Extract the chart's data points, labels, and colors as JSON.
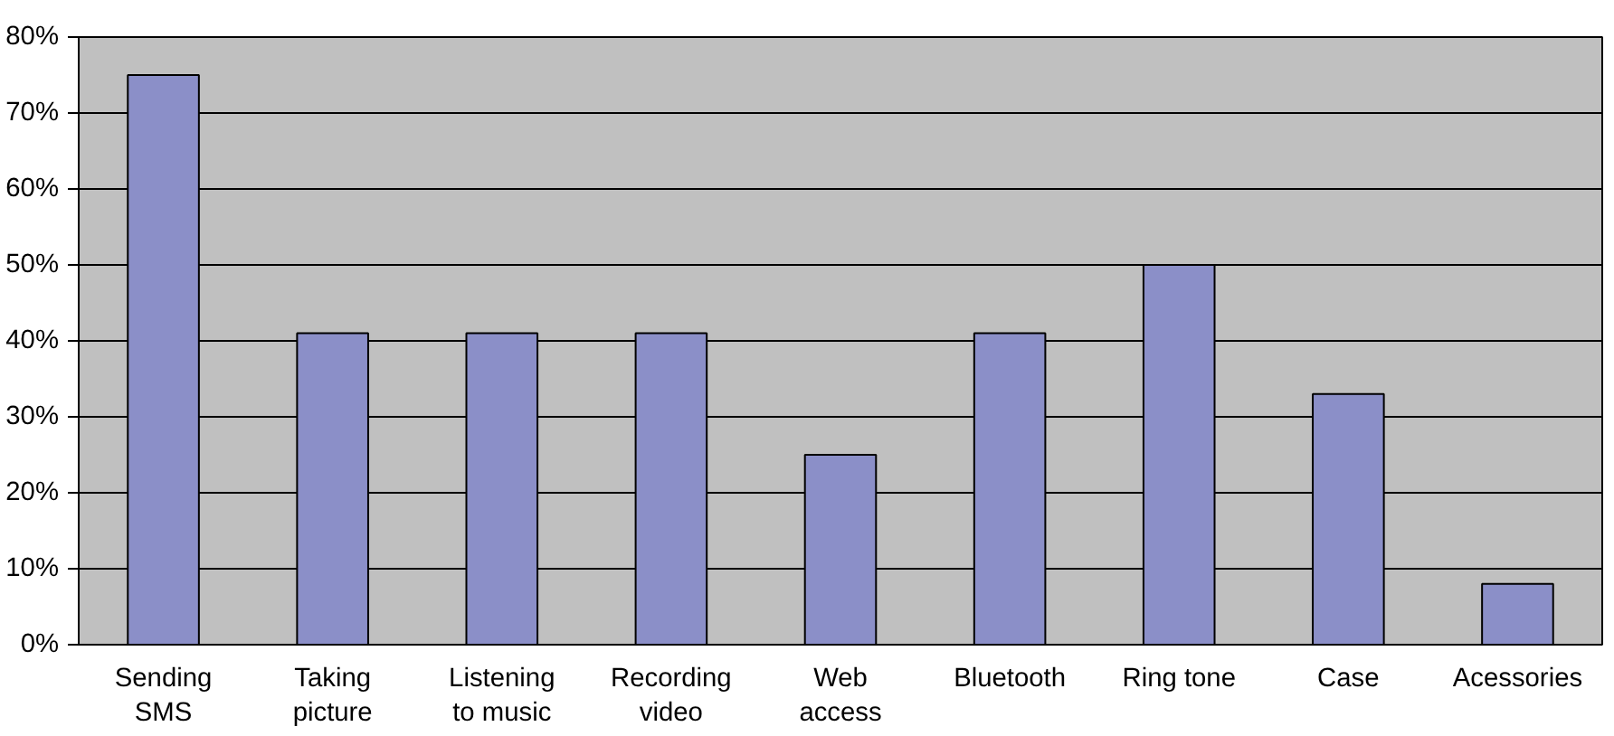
{
  "chart_data": {
    "type": "bar",
    "categories": [
      "Sending SMS",
      "Taking picture",
      "Listening to music",
      "Recording video",
      "Web access",
      "Bluetooth",
      "Ring tone",
      "Case",
      "Acessories"
    ],
    "values": [
      75,
      41,
      41,
      41,
      25,
      41,
      50,
      33,
      8
    ],
    "color": "#8b8fc8",
    "ylim": [
      0,
      80
    ],
    "yticks": [
      {
        "value": 0,
        "label": "0%"
      },
      {
        "value": 10,
        "label": "10%"
      },
      {
        "value": 20,
        "label": "20%"
      },
      {
        "value": 30,
        "label": "30%"
      },
      {
        "value": 40,
        "label": "40%"
      },
      {
        "value": 50,
        "label": "50%"
      },
      {
        "value": 60,
        "label": "60%"
      },
      {
        "value": 70,
        "label": "70%"
      },
      {
        "value": 80,
        "label": "80%"
      }
    ],
    "grid": "y"
  }
}
